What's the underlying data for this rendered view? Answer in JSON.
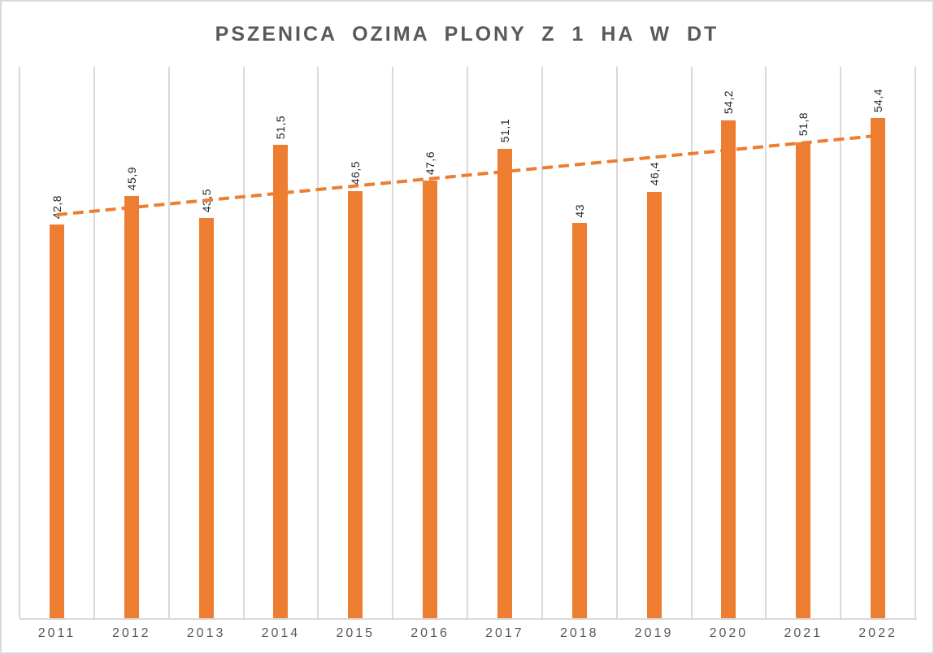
{
  "window": {
    "background": "#FFFFFF",
    "border_color": "#D9D9D9"
  },
  "chart_data": {
    "type": "bar",
    "title": "PSZENICA OZIMA PLONY Z 1 HA W DT",
    "categories": [
      "2011",
      "2012",
      "2013",
      "2014",
      "2015",
      "2016",
      "2017",
      "2018",
      "2019",
      "2020",
      "2021",
      "2022"
    ],
    "values": [
      42.8,
      45.9,
      43.5,
      51.5,
      46.5,
      47.6,
      51.1,
      43,
      46.4,
      54.2,
      51.8,
      54.4
    ],
    "value_labels": [
      "42,8",
      "45,9",
      "43,5",
      "51,5",
      "46,5",
      "47,6",
      "51,1",
      "43",
      "46,4",
      "54,2",
      "51,8",
      "54,4"
    ],
    "xlabel": "",
    "ylabel": "",
    "ylim": [
      0,
      60
    ],
    "legend": "none",
    "grid": "vertical-category-boundaries",
    "data_label_rotation": "vertical-bottom-to-top",
    "bar_color": "#ED7D31",
    "data_label_color": "#262626",
    "title_color": "#595959",
    "axis_label_color": "#595959",
    "gridline_color": "#D9D9D9",
    "axis_line_color": "#D9D9D9",
    "trendline": {
      "type": "linear",
      "style": "dashed",
      "color": "#ED7D31",
      "start_value": 43.9,
      "end_value": 52.5
    }
  }
}
